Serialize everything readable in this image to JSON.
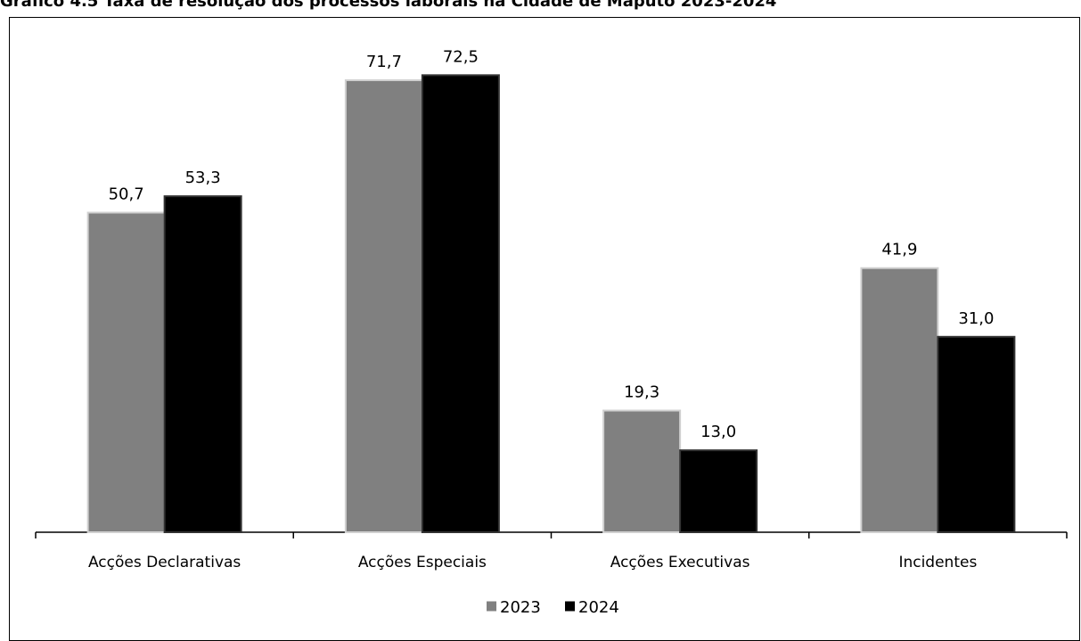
{
  "chart_data": {
    "type": "bar",
    "title": "Gráfico 4.5 Taxa de resolução dos processos laborais na Cidade de Maputo 2023-2024",
    "categories": [
      "Acções Declarativas",
      "Acções Especiais",
      "Acções Executivas",
      "Incidentes"
    ],
    "series": [
      {
        "name": "2023",
        "values": [
          50.7,
          71.7,
          19.3,
          41.9
        ],
        "labels": [
          "50,7",
          "71,7",
          "19,3",
          "41,9"
        ],
        "color": "#808080"
      },
      {
        "name": "2024",
        "values": [
          53.3,
          72.5,
          13.0,
          31.0
        ],
        "labels": [
          "53,3",
          "72,5",
          "13,0",
          "31,0"
        ],
        "color": "#000000"
      }
    ],
    "ylim": [
      0,
      80
    ],
    "grid": false,
    "legend": "bottom",
    "xlabel": "",
    "ylabel": ""
  }
}
